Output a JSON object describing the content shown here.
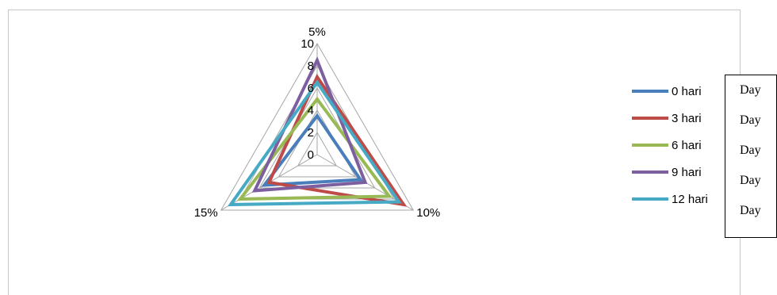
{
  "chart_data": {
    "type": "radar",
    "axes": [
      "5%",
      "10%",
      "15%"
    ],
    "r_ticks": [
      "0",
      "2",
      "4",
      "6",
      "8",
      "10"
    ],
    "r_range": [
      0,
      10
    ],
    "series": [
      {
        "name": "0 hari",
        "color": "#4a7ebb",
        "values": [
          3.5,
          4.5,
          5.5
        ]
      },
      {
        "name": "3 hari",
        "color": "#be4b48",
        "values": [
          7.0,
          9.0,
          5.0
        ]
      },
      {
        "name": "6 hari",
        "color": "#98b954",
        "values": [
          5.0,
          7.5,
          8.0
        ]
      },
      {
        "name": "9 hari",
        "color": "#7d5fa0",
        "values": [
          8.5,
          5.0,
          6.5
        ]
      },
      {
        "name": "12 hari",
        "color": "#46aac5",
        "values": [
          6.5,
          8.5,
          9.0
        ]
      }
    ],
    "legend_position": "right"
  },
  "overlay": {
    "labels": [
      "Day",
      "Day",
      "Day",
      "Day",
      "Day"
    ]
  }
}
